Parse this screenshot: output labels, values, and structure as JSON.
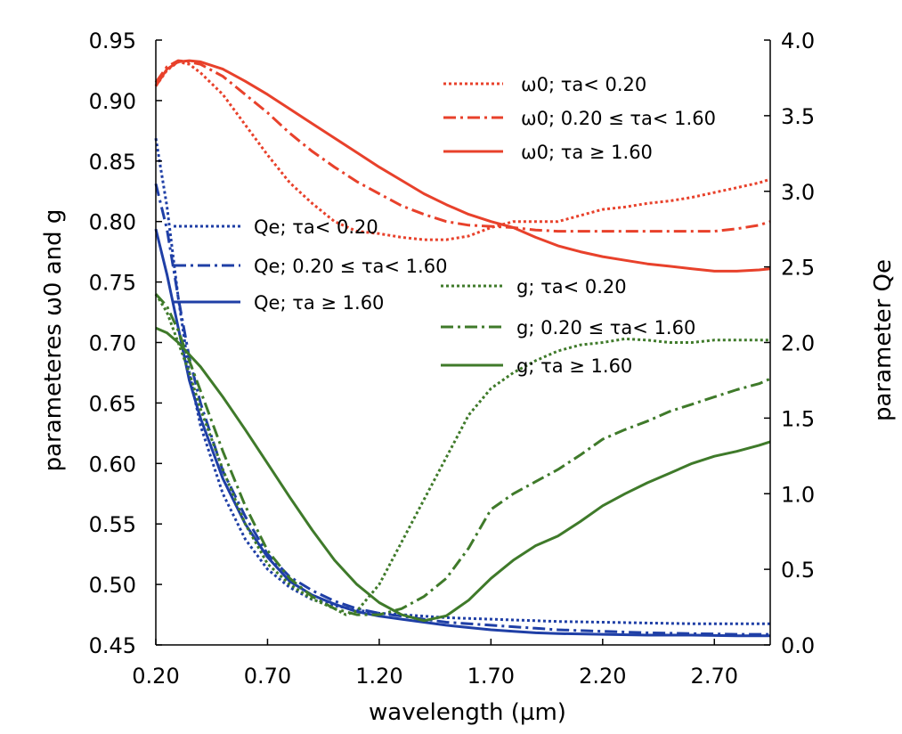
{
  "chart_data": {
    "type": "line",
    "xlabel": "wavelength (µm)",
    "ylabel_left": "parameteres ω0 and g",
    "ylabel_right": "parameter Qe",
    "xlim": [
      0.2,
      2.95
    ],
    "ylim_left": [
      0.45,
      0.95
    ],
    "ylim_right": [
      0.0,
      4.0
    ],
    "x_ticks": [
      "0.20",
      "0.70",
      "1.20",
      "1.70",
      "2.20",
      "2.70"
    ],
    "y_ticks_left": [
      "0.45",
      "0.50",
      "0.55",
      "0.60",
      "0.65",
      "0.70",
      "0.75",
      "0.80",
      "0.85",
      "0.90",
      "0.95"
    ],
    "y_ticks_right": [
      "0.0",
      "0.5",
      "1.0",
      "1.5",
      "2.0",
      "2.5",
      "3.0",
      "3.5",
      "4.0"
    ],
    "grid": false,
    "legend_groups": [
      {
        "placement": "top-right",
        "color": "#e8412b",
        "entries": [
          "ω0; τa< 0.20",
          "ω0; 0.20 ≤ τa< 1.60",
          "ω0;  τa ≥ 1.60"
        ]
      },
      {
        "placement": "upper-left",
        "color": "#1f3fa6",
        "entries": [
          "Qe; τa< 0.20",
          "Qe; 0.20 ≤ τa< 1.60",
          "Qe;  τa ≥ 1.60"
        ]
      },
      {
        "placement": "center-right",
        "color": "#3f7a2a",
        "entries": [
          "g; τa< 0.20",
          "g; 0.20 ≤ τa< 1.60",
          "g;  τa ≥ 1.60"
        ]
      }
    ],
    "series": [
      {
        "name": "ω0; τa< 0.20",
        "axis": "left",
        "color": "#e8412b",
        "dash": "dot",
        "x": [
          0.2,
          0.25,
          0.3,
          0.35,
          0.4,
          0.5,
          0.6,
          0.7,
          0.8,
          0.9,
          1.0,
          1.1,
          1.2,
          1.3,
          1.4,
          1.5,
          1.6,
          1.7,
          1.8,
          1.9,
          2.0,
          2.1,
          2.2,
          2.3,
          2.4,
          2.5,
          2.6,
          2.7,
          2.8,
          2.9,
          2.95
        ],
        "y": [
          0.912,
          0.925,
          0.932,
          0.93,
          0.923,
          0.905,
          0.88,
          0.855,
          0.832,
          0.815,
          0.8,
          0.792,
          0.79,
          0.787,
          0.785,
          0.785,
          0.788,
          0.795,
          0.8,
          0.8,
          0.8,
          0.805,
          0.81,
          0.812,
          0.815,
          0.817,
          0.82,
          0.824,
          0.828,
          0.832,
          0.835
        ]
      },
      {
        "name": "ω0; 0.20 ≤ τa< 1.60",
        "axis": "left",
        "color": "#e8412b",
        "dash": "dashdot",
        "x": [
          0.2,
          0.25,
          0.3,
          0.35,
          0.4,
          0.5,
          0.6,
          0.7,
          0.8,
          0.9,
          1.0,
          1.1,
          1.2,
          1.3,
          1.4,
          1.5,
          1.6,
          1.7,
          1.8,
          1.9,
          2.0,
          2.1,
          2.2,
          2.3,
          2.4,
          2.5,
          2.6,
          2.7,
          2.8,
          2.9,
          2.95
        ],
        "y": [
          0.915,
          0.928,
          0.933,
          0.932,
          0.93,
          0.92,
          0.905,
          0.89,
          0.873,
          0.858,
          0.845,
          0.833,
          0.823,
          0.813,
          0.806,
          0.8,
          0.797,
          0.796,
          0.795,
          0.793,
          0.792,
          0.792,
          0.792,
          0.792,
          0.792,
          0.792,
          0.792,
          0.792,
          0.794,
          0.797,
          0.8
        ]
      },
      {
        "name": "ω0;  τa ≥ 1.60",
        "axis": "left",
        "color": "#e8412b",
        "dash": "solid",
        "x": [
          0.2,
          0.25,
          0.3,
          0.35,
          0.4,
          0.5,
          0.6,
          0.7,
          0.8,
          0.9,
          1.0,
          1.1,
          1.2,
          1.3,
          1.4,
          1.5,
          1.6,
          1.7,
          1.8,
          1.9,
          2.0,
          2.1,
          2.2,
          2.3,
          2.4,
          2.5,
          2.6,
          2.7,
          2.8,
          2.9,
          2.95
        ],
        "y": [
          0.912,
          0.926,
          0.932,
          0.933,
          0.932,
          0.926,
          0.916,
          0.905,
          0.893,
          0.881,
          0.869,
          0.857,
          0.845,
          0.834,
          0.823,
          0.814,
          0.806,
          0.8,
          0.795,
          0.787,
          0.78,
          0.775,
          0.771,
          0.768,
          0.765,
          0.763,
          0.761,
          0.759,
          0.759,
          0.76,
          0.761
        ]
      },
      {
        "name": "Qe; τa< 0.20",
        "axis": "right",
        "color": "#1f3fa6",
        "dash": "dot",
        "x": [
          0.2,
          0.25,
          0.3,
          0.35,
          0.4,
          0.5,
          0.6,
          0.7,
          0.8,
          0.9,
          1.0,
          1.1,
          1.2,
          1.3,
          1.4,
          1.5,
          1.6,
          1.7,
          1.8,
          1.9,
          2.0,
          2.2,
          2.4,
          2.6,
          2.8,
          2.95
        ],
        "y": [
          3.35,
          2.9,
          2.3,
          1.8,
          1.45,
          1.0,
          0.7,
          0.5,
          0.38,
          0.3,
          0.26,
          0.23,
          0.21,
          0.2,
          0.19,
          0.18,
          0.175,
          0.17,
          0.165,
          0.16,
          0.155,
          0.15,
          0.145,
          0.14,
          0.14,
          0.14
        ]
      },
      {
        "name": "Qe; 0.20 ≤ τa< 1.60",
        "axis": "right",
        "color": "#1f3fa6",
        "dash": "dashdot",
        "x": [
          0.2,
          0.25,
          0.3,
          0.35,
          0.4,
          0.5,
          0.6,
          0.7,
          0.8,
          0.9,
          1.0,
          1.1,
          1.2,
          1.3,
          1.4,
          1.5,
          1.6,
          1.7,
          1.8,
          1.9,
          2.0,
          2.2,
          2.4,
          2.6,
          2.8,
          2.95
        ],
        "y": [
          3.05,
          2.75,
          2.3,
          1.9,
          1.6,
          1.15,
          0.85,
          0.6,
          0.45,
          0.36,
          0.29,
          0.24,
          0.21,
          0.19,
          0.17,
          0.15,
          0.14,
          0.13,
          0.12,
          0.11,
          0.1,
          0.09,
          0.08,
          0.075,
          0.07,
          0.07
        ]
      },
      {
        "name": "Qe;  τa ≥ 1.60",
        "axis": "right",
        "color": "#1f3fa6",
        "dash": "solid",
        "x": [
          0.2,
          0.25,
          0.3,
          0.35,
          0.4,
          0.5,
          0.6,
          0.7,
          0.8,
          0.9,
          1.0,
          1.1,
          1.2,
          1.3,
          1.4,
          1.5,
          1.6,
          1.7,
          1.8,
          1.9,
          2.0,
          2.2,
          2.4,
          2.6,
          2.8,
          2.95
        ],
        "y": [
          2.75,
          2.45,
          2.1,
          1.75,
          1.5,
          1.1,
          0.8,
          0.58,
          0.42,
          0.33,
          0.27,
          0.22,
          0.19,
          0.17,
          0.15,
          0.13,
          0.115,
          0.1,
          0.09,
          0.08,
          0.075,
          0.07,
          0.065,
          0.065,
          0.06,
          0.06
        ]
      },
      {
        "name": "g; τa< 0.20",
        "axis": "left",
        "color": "#3f7a2a",
        "dash": "dot",
        "x": [
          0.2,
          0.25,
          0.3,
          0.35,
          0.4,
          0.5,
          0.6,
          0.7,
          0.8,
          0.9,
          1.0,
          1.05,
          1.1,
          1.2,
          1.3,
          1.4,
          1.5,
          1.6,
          1.7,
          1.8,
          1.9,
          2.0,
          2.1,
          2.2,
          2.3,
          2.4,
          2.5,
          2.6,
          2.7,
          2.8,
          2.95
        ],
        "y": [
          0.74,
          0.725,
          0.7,
          0.675,
          0.645,
          0.595,
          0.55,
          0.517,
          0.5,
          0.488,
          0.48,
          0.475,
          0.478,
          0.5,
          0.535,
          0.57,
          0.605,
          0.64,
          0.662,
          0.675,
          0.685,
          0.693,
          0.698,
          0.7,
          0.703,
          0.702,
          0.7,
          0.7,
          0.702,
          0.702,
          0.702
        ]
      },
      {
        "name": "g; 0.20 ≤ τa< 1.60",
        "axis": "left",
        "color": "#3f7a2a",
        "dash": "dashdot",
        "x": [
          0.2,
          0.25,
          0.3,
          0.35,
          0.4,
          0.5,
          0.6,
          0.7,
          0.8,
          0.9,
          1.0,
          1.1,
          1.2,
          1.3,
          1.4,
          1.5,
          1.6,
          1.7,
          1.8,
          1.9,
          2.0,
          2.1,
          2.2,
          2.3,
          2.4,
          2.5,
          2.6,
          2.7,
          2.8,
          2.9,
          2.95
        ],
        "y": [
          0.74,
          0.73,
          0.71,
          0.685,
          0.66,
          0.61,
          0.565,
          0.528,
          0.505,
          0.49,
          0.48,
          0.475,
          0.475,
          0.48,
          0.49,
          0.505,
          0.53,
          0.562,
          0.575,
          0.585,
          0.595,
          0.607,
          0.62,
          0.628,
          0.635,
          0.643,
          0.649,
          0.655,
          0.661,
          0.666,
          0.67
        ]
      },
      {
        "name": "g;  τa ≥ 1.60",
        "axis": "left",
        "color": "#3f7a2a",
        "dash": "solid",
        "x": [
          0.2,
          0.25,
          0.3,
          0.35,
          0.4,
          0.5,
          0.6,
          0.7,
          0.8,
          0.9,
          1.0,
          1.1,
          1.2,
          1.3,
          1.4,
          1.5,
          1.6,
          1.7,
          1.8,
          1.9,
          2.0,
          2.1,
          2.2,
          2.3,
          2.4,
          2.5,
          2.6,
          2.7,
          2.8,
          2.9,
          2.95
        ],
        "y": [
          0.712,
          0.708,
          0.7,
          0.69,
          0.68,
          0.655,
          0.628,
          0.6,
          0.572,
          0.545,
          0.52,
          0.5,
          0.485,
          0.475,
          0.47,
          0.474,
          0.487,
          0.505,
          0.52,
          0.532,
          0.54,
          0.552,
          0.565,
          0.575,
          0.584,
          0.592,
          0.6,
          0.606,
          0.61,
          0.615,
          0.618
        ]
      }
    ]
  }
}
